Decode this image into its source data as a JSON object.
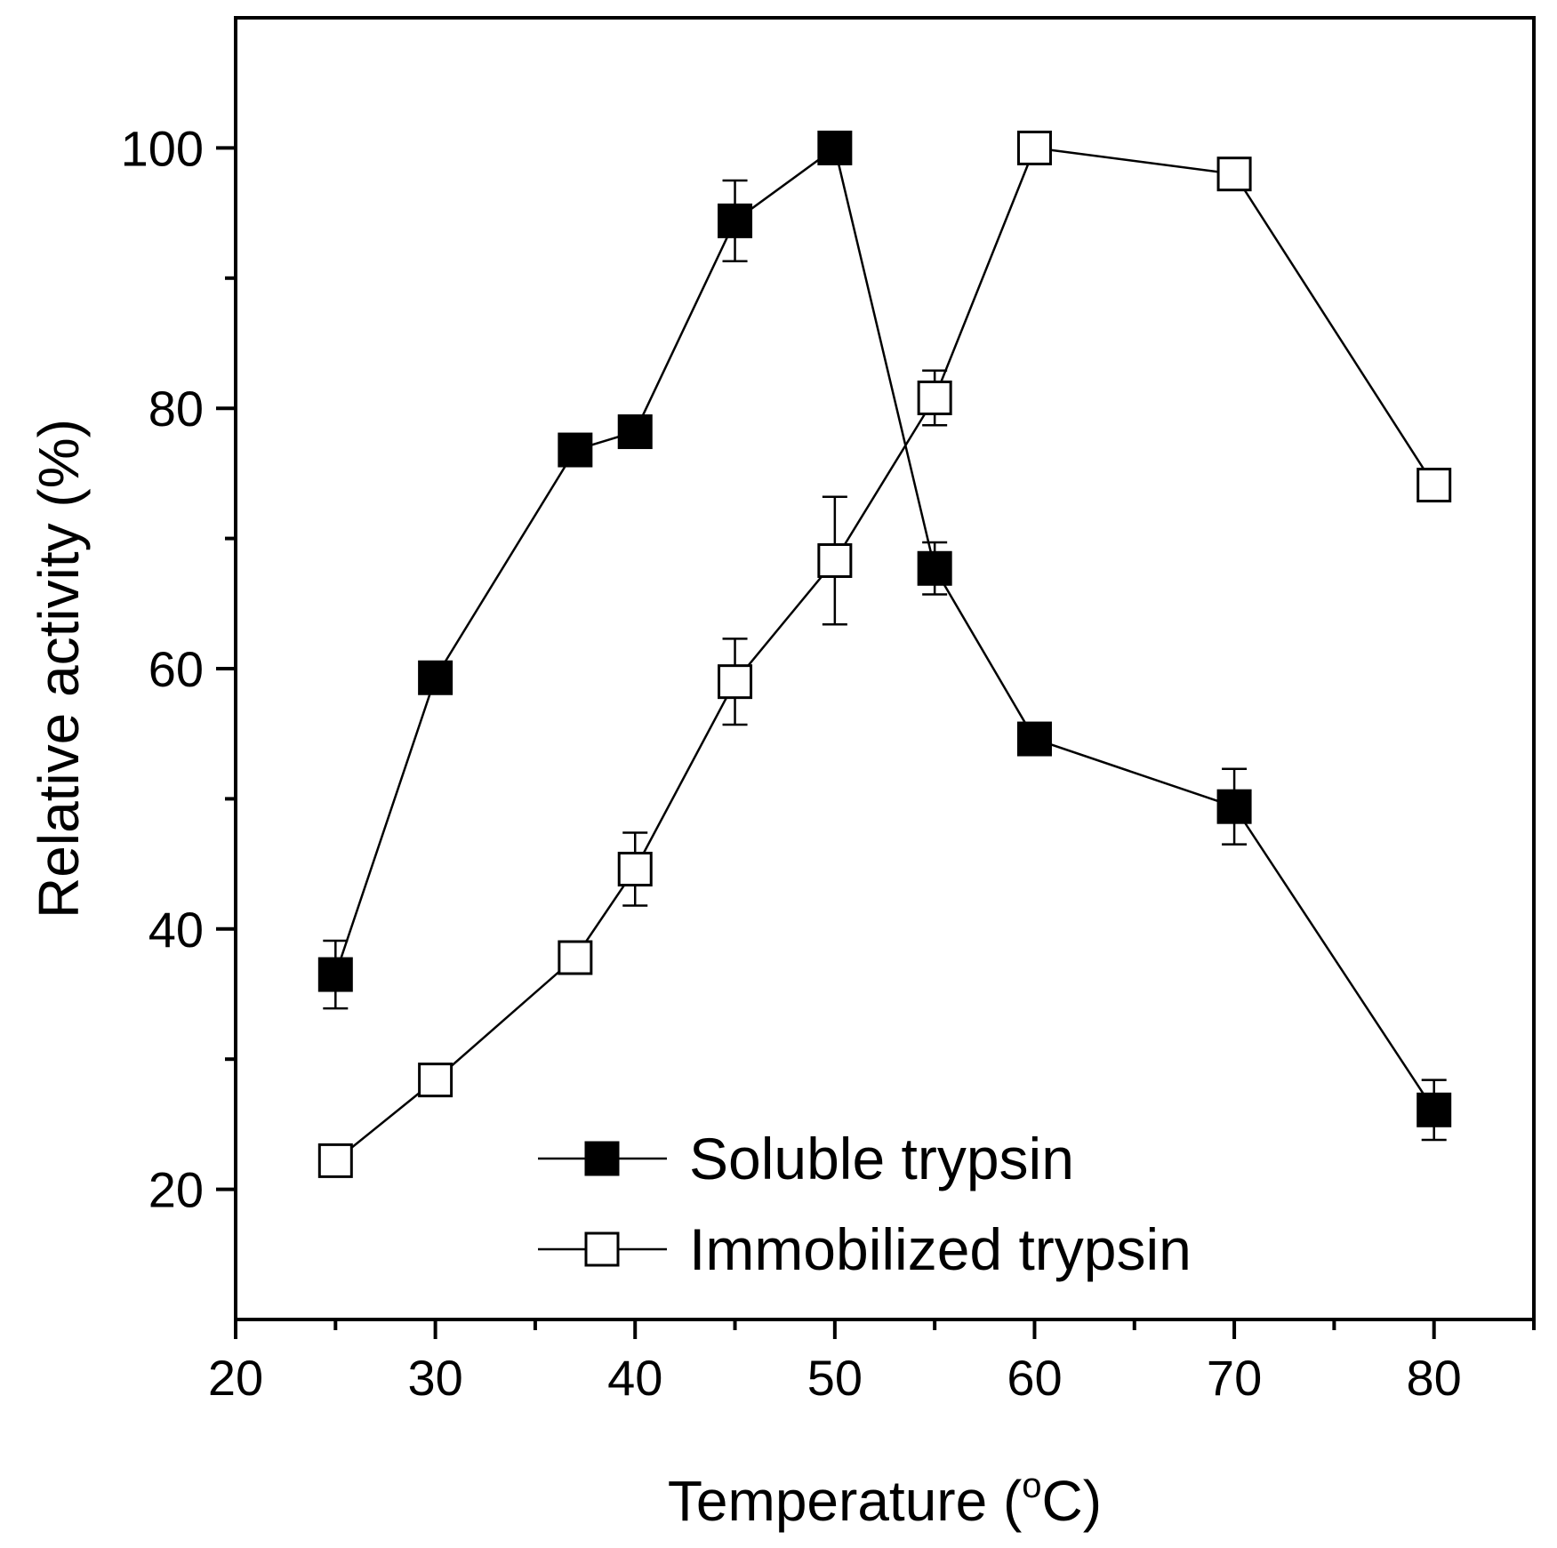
{
  "chart_data": {
    "type": "line",
    "xlabel": "Temperature (",
    "xlabel_sup": "o",
    "xlabel_tail": "C)",
    "ylabel": "Relative activity (%)",
    "xlim": [
      20,
      85
    ],
    "ylim": [
      10,
      110
    ],
    "x_ticks": [
      20,
      30,
      40,
      50,
      60,
      70,
      80
    ],
    "y_ticks": [
      20,
      40,
      60,
      80,
      100
    ],
    "grid": false,
    "legend_position": "bottom-center",
    "series": [
      {
        "name": "Soluble trypsin",
        "marker": "filled-square",
        "color": "#000000",
        "x": [
          25,
          30,
          37,
          40,
          45,
          50,
          55,
          60,
          70,
          80
        ],
        "y": [
          36.5,
          59.3,
          76.8,
          78.2,
          94.4,
          100,
          67.7,
          54.6,
          49.4,
          26.1
        ],
        "err": [
          2.6,
          0,
          0,
          0,
          3.1,
          0,
          2.0,
          0,
          2.9,
          2.3
        ]
      },
      {
        "name": "Immobilized trypsin",
        "marker": "open-square",
        "color": "#000000",
        "x": [
          25,
          30,
          37,
          40,
          45,
          50,
          55,
          60,
          70,
          80
        ],
        "y": [
          22.2,
          28.4,
          37.8,
          44.6,
          59.0,
          68.3,
          80.8,
          100,
          98.0,
          74.1
        ],
        "err": [
          0,
          0,
          0,
          2.8,
          3.3,
          4.9,
          2.1,
          0,
          0,
          0
        ]
      }
    ]
  }
}
